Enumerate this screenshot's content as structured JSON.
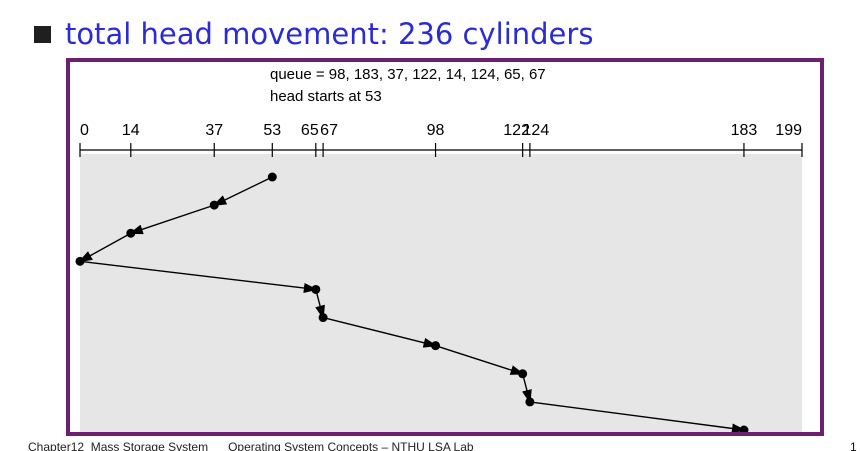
{
  "slide": {
    "bullet_text": "total head movement: 236 cylinders",
    "footer_text": "Chapter12  Mass Storage System      Operating System Concepts – NTHU LSA Lab",
    "page_number": "1"
  },
  "diagram": {
    "queue_label": "queue = 98, 183, 37, 122, 14, 124, 65, 67",
    "head_label": "head starts at 53",
    "scale_min": 0,
    "scale_max": 199,
    "ticks": [
      0,
      14,
      37,
      53,
      65,
      67,
      98,
      122,
      124,
      183,
      199
    ],
    "tick_labels": [
      "0",
      "14",
      "37",
      "53",
      "65",
      "67",
      "98",
      "122",
      "124",
      "183",
      "199"
    ],
    "service_order": [
      53,
      37,
      14,
      0,
      65,
      67,
      98,
      122,
      124,
      183
    ],
    "colors": {
      "frame": "#6e1f72",
      "panel": "#e6e6e6",
      "bullet_text": "#2b2bd6",
      "ink": "#000000"
    }
  }
}
